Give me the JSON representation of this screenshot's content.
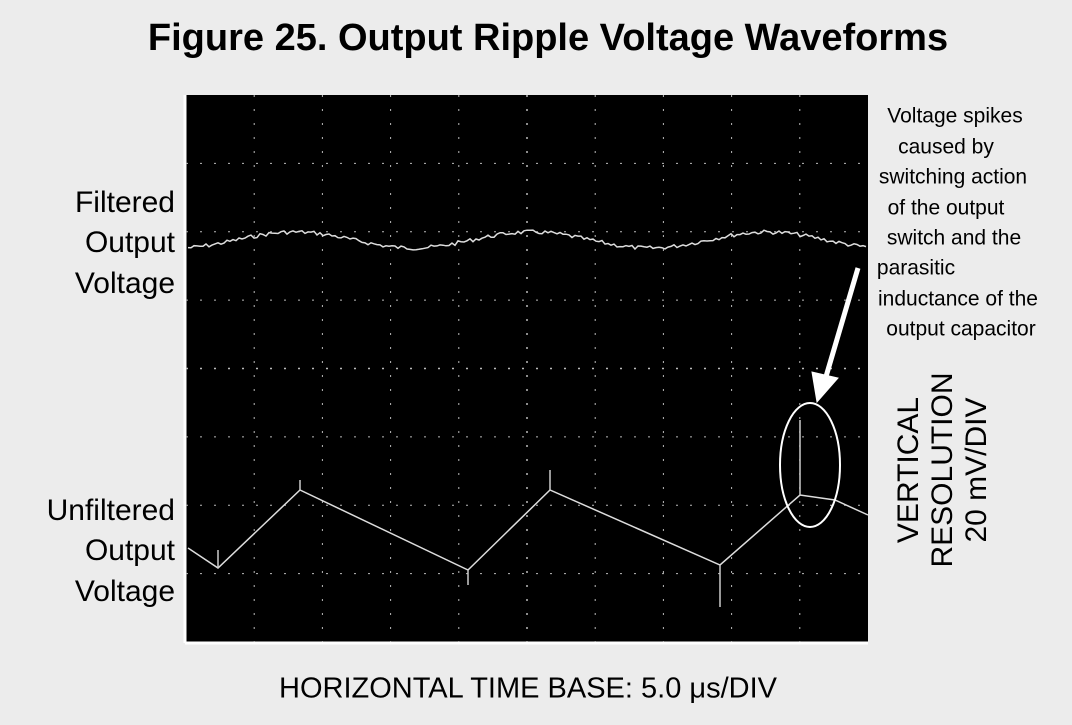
{
  "header": {
    "title": "Figure 25. Output Ripple Voltage Waveforms"
  },
  "labels": {
    "filtered": [
      "Filtered",
      "Output",
      "Voltage"
    ],
    "unfiltered": [
      "Unfiltered",
      "Output",
      "Voltage"
    ]
  },
  "annotation": [
    "Voltage spikes",
    "caused by",
    "switching action",
    "of the output",
    "switch and the",
    "parasitic",
    "inductance of the",
    "output capacitor"
  ],
  "vertical_resolution": [
    "VERTICAL",
    "RESOLUTION",
    "20 mV/DIV"
  ],
  "horizontal_time_base": "HORIZONTAL TIME BASE: 5.0 μs/DIV"
}
